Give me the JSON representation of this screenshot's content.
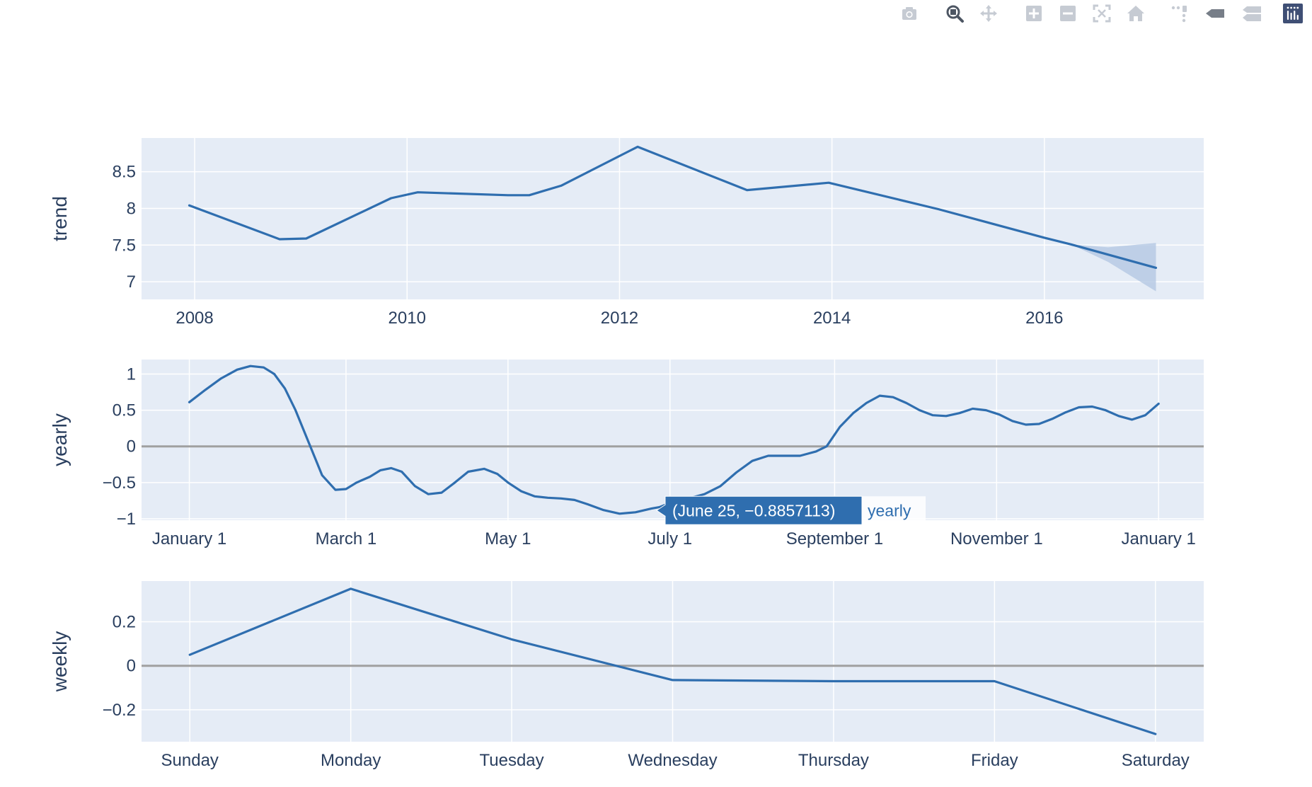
{
  "modebar": {
    "buttons": [
      {
        "name": "camera-icon",
        "label": "Download plot as a png"
      },
      {
        "name": "zoom-icon",
        "label": "Zoom"
      },
      {
        "name": "pan-icon",
        "label": "Pan"
      },
      {
        "name": "zoom-in-icon",
        "label": "Zoom in"
      },
      {
        "name": "zoom-out-icon",
        "label": "Zoom out"
      },
      {
        "name": "autoscale-icon",
        "label": "Autoscale"
      },
      {
        "name": "home-icon",
        "label": "Reset axes"
      },
      {
        "name": "spike-lines-icon",
        "label": "Toggle Spike Lines"
      },
      {
        "name": "hover-closest-icon",
        "label": "Show closest data on hover"
      },
      {
        "name": "hover-compare-icon",
        "label": "Compare data on hover"
      },
      {
        "name": "plotly-logo-icon",
        "label": "Produced with Plotly"
      }
    ]
  },
  "colors": {
    "line": "#2f6eaf",
    "band": "#b4c8e4",
    "plot_bg": "#e5ecf6",
    "grid": "#ffffff",
    "zero": "#a0a0a0",
    "text": "#2a3f5f"
  },
  "chart_data": [
    {
      "type": "line",
      "ylabel": "trend",
      "xlabel": "",
      "x_tick_labels": [
        "2008",
        "2010",
        "2012",
        "2014",
        "2016"
      ],
      "x_tick_values": [
        2008,
        2010,
        2012,
        2014,
        2016
      ],
      "xlim": [
        2007.5,
        2017.5
      ],
      "y_tick_labels": [
        "7",
        "7.5",
        "8",
        "8.5"
      ],
      "y_tick_values": [
        7,
        7.5,
        8,
        8.5
      ],
      "ylim": [
        6.76,
        8.96
      ],
      "x": [
        2007.95,
        2008.8,
        2009.05,
        2009.85,
        2010.1,
        2010.95,
        2011.15,
        2011.45,
        2012.17,
        2013.2,
        2013.97,
        2015.0,
        2016.0,
        2016.25,
        2017.05
      ],
      "y": [
        8.04,
        7.58,
        7.59,
        8.14,
        8.22,
        8.18,
        8.18,
        8.31,
        8.84,
        8.25,
        8.35,
        7.99,
        7.6,
        7.51,
        7.19
      ],
      "band": {
        "x": [
          2016.25,
          2016.6,
          2017.05
        ],
        "upper": [
          7.51,
          7.47,
          7.53
        ],
        "lower": [
          7.51,
          7.27,
          6.87
        ]
      },
      "zero_line": false
    },
    {
      "type": "line",
      "ylabel": "yearly",
      "xlabel": "",
      "x_tick_labels": [
        "January 1",
        "March 1",
        "May 1",
        "July 1",
        "September 1",
        "November 1",
        "January 1"
      ],
      "x_tick_values": [
        0,
        59,
        120,
        181,
        243,
        304,
        365
      ],
      "xlim": [
        -18,
        382
      ],
      "y_tick_labels": [
        "−1",
        "−0.5",
        "0",
        "0.5",
        "1"
      ],
      "y_tick_values": [
        -1,
        -0.5,
        0,
        0.5,
        1
      ],
      "ylim": [
        -1.02,
        1.2
      ],
      "x": [
        0,
        6,
        12,
        18,
        23,
        28,
        32,
        36,
        40,
        45,
        50,
        55,
        59,
        63,
        68,
        72,
        76,
        80,
        85,
        90,
        95,
        100,
        105,
        111,
        116,
        120,
        125,
        130,
        135,
        140,
        145,
        150,
        156,
        162,
        168,
        174,
        177,
        182,
        188,
        194,
        200,
        206,
        212,
        218,
        224,
        230,
        236,
        240,
        245,
        250,
        255,
        260,
        265,
        270,
        275,
        280,
        285,
        290,
        295,
        300,
        305,
        310,
        315,
        320,
        325,
        330,
        335,
        340,
        345,
        350,
        355,
        360,
        365
      ],
      "y": [
        0.61,
        0.78,
        0.94,
        1.06,
        1.11,
        1.09,
        1.0,
        0.8,
        0.5,
        0.05,
        -0.4,
        -0.6,
        -0.59,
        -0.5,
        -0.42,
        -0.33,
        -0.3,
        -0.35,
        -0.55,
        -0.66,
        -0.64,
        -0.5,
        -0.35,
        -0.31,
        -0.38,
        -0.5,
        -0.62,
        -0.69,
        -0.71,
        -0.72,
        -0.74,
        -0.8,
        -0.88,
        -0.93,
        -0.91,
        -0.86,
        -0.84,
        -0.77,
        -0.72,
        -0.66,
        -0.55,
        -0.36,
        -0.2,
        -0.13,
        -0.13,
        -0.13,
        -0.07,
        0.0,
        0.27,
        0.46,
        0.6,
        0.7,
        0.68,
        0.6,
        0.5,
        0.43,
        0.42,
        0.46,
        0.52,
        0.5,
        0.44,
        0.35,
        0.3,
        0.31,
        0.38,
        0.47,
        0.54,
        0.55,
        0.5,
        0.42,
        0.37,
        0.43,
        0.59
      ],
      "zero_line": true,
      "hover": {
        "text": "(June 25, −0.8857113)",
        "trace": "yearly",
        "x": 176,
        "y": -0.8857113
      }
    },
    {
      "type": "line",
      "ylabel": "weekly",
      "xlabel": "",
      "x_tick_labels": [
        "Sunday",
        "Monday",
        "Tuesday",
        "Wednesday",
        "Thursday",
        "Friday",
        "Saturday"
      ],
      "x_tick_values": [
        0,
        1,
        2,
        3,
        4,
        5,
        6
      ],
      "xlim": [
        -0.3,
        6.3
      ],
      "y_tick_labels": [
        "−0.2",
        "0",
        "0.2"
      ],
      "y_tick_values": [
        -0.2,
        0,
        0.2
      ],
      "ylim": [
        -0.345,
        0.385
      ],
      "x": [
        0,
        1,
        2,
        3,
        4,
        5,
        6
      ],
      "y": [
        0.05,
        0.35,
        0.12,
        -0.065,
        -0.07,
        -0.07,
        -0.31
      ],
      "zero_line": true
    }
  ]
}
